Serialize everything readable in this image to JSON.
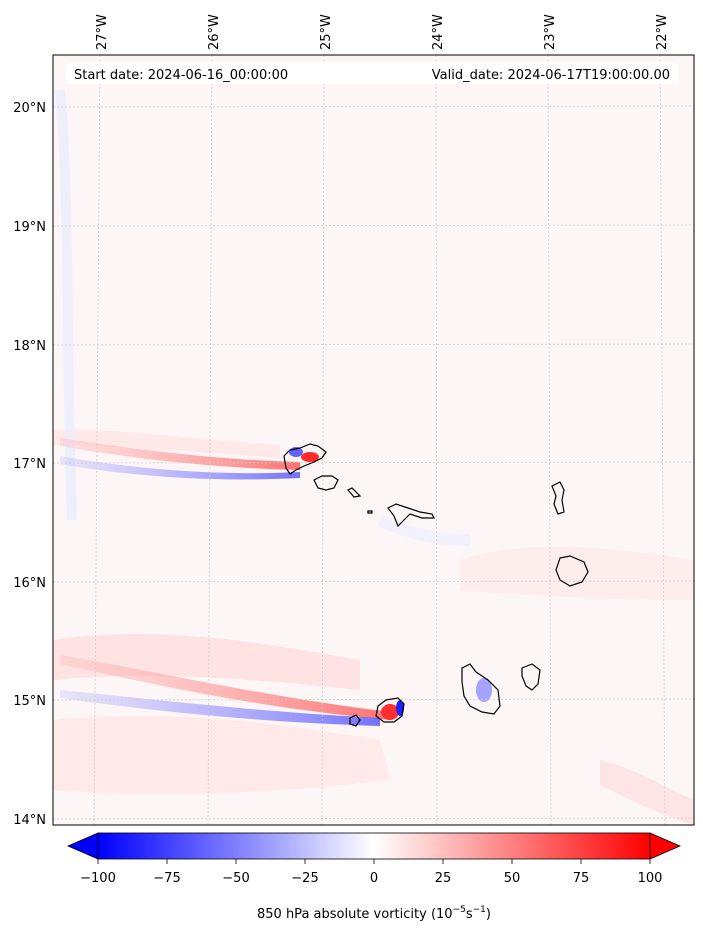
{
  "header": {
    "start_label": "Start date: 2024-06-16_00:00:00",
    "valid_label": "Valid_date: 2024-06-17T19:00:00.00"
  },
  "map": {
    "variable": "850 hPa absolute vorticity",
    "lon_labels": [
      "27°W",
      "26°W",
      "25°W",
      "24°W",
      "23°W",
      "22°W"
    ],
    "lat_labels": [
      "20°N",
      "19°N",
      "18°N",
      "17°N",
      "16°N",
      "15°N",
      "14°N"
    ],
    "lon_range_deg": [
      -27.5,
      -21.8
    ],
    "lat_range_deg": [
      13.95,
      20.45
    ],
    "coastline_color": "#000000",
    "gridline_color": "#cccccc"
  },
  "colorbar": {
    "ticks": [
      "−100",
      "−75",
      "−50",
      "−25",
      "0",
      "25",
      "50",
      "75",
      "100"
    ],
    "range": [
      -100,
      100
    ],
    "extend": "both",
    "colormap": "bwr",
    "low_color": "#0000ff",
    "mid_color": "#ffffff",
    "high_color": "#ff0000",
    "label_prefix": "850 hPa absolute vorticity (10",
    "label_exp1": "−5",
    "label_mid": "s",
    "label_exp2": "−1",
    "label_suffix": ")"
  }
}
